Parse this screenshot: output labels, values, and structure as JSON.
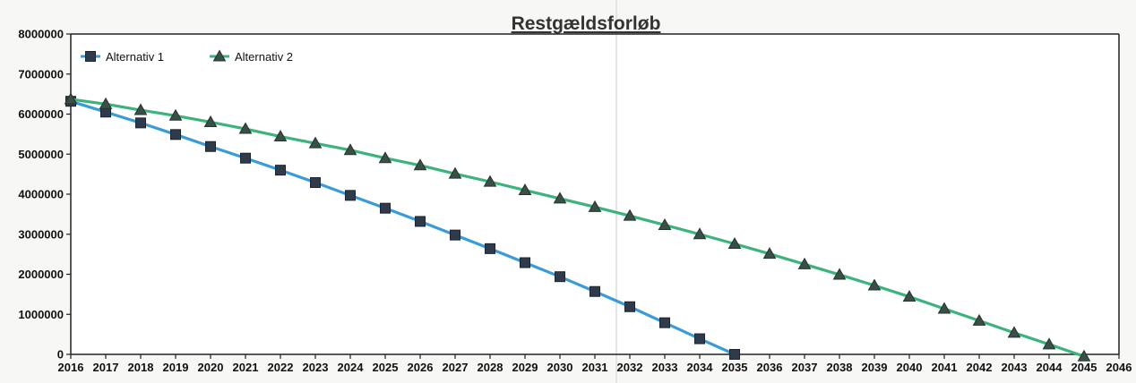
{
  "chart_data": {
    "type": "line",
    "title": "Restgældsforløb",
    "xlabel": "",
    "ylabel": "",
    "x": [
      2016,
      2017,
      2018,
      2019,
      2020,
      2021,
      2022,
      2023,
      2024,
      2025,
      2026,
      2027,
      2028,
      2029,
      2030,
      2031,
      2032,
      2033,
      2034,
      2035,
      2036,
      2037,
      2038,
      2039,
      2040,
      2041,
      2042,
      2043,
      2044,
      2045,
      2046
    ],
    "xlim": [
      2016,
      2046
    ],
    "ylim": [
      0,
      8000000
    ],
    "yticks": [
      0,
      1000000,
      2000000,
      3000000,
      4000000,
      5000000,
      6000000,
      7000000,
      8000000
    ],
    "legend_position": "top-left",
    "grid": false,
    "series": [
      {
        "name": "Alternativ 1",
        "color": "#3a9bd8",
        "marker": "square",
        "x": [
          2016,
          2017,
          2018,
          2019,
          2020,
          2021,
          2022,
          2023,
          2024,
          2025,
          2026,
          2027,
          2028,
          2029,
          2030,
          2031,
          2032,
          2033,
          2034,
          2035
        ],
        "values": [
          6320000,
          6050000,
          5780000,
          5490000,
          5190000,
          4900000,
          4600000,
          4290000,
          3970000,
          3650000,
          3320000,
          2980000,
          2640000,
          2290000,
          1940000,
          1570000,
          1190000,
          790000,
          390000,
          0
        ]
      },
      {
        "name": "Alternativ 2",
        "color": "#3db37c",
        "marker": "triangle",
        "x": [
          2016,
          2017,
          2018,
          2019,
          2020,
          2021,
          2022,
          2023,
          2024,
          2025,
          2026,
          2027,
          2028,
          2029,
          2030,
          2031,
          2032,
          2033,
          2034,
          2035,
          2036,
          2037,
          2038,
          2039,
          2040,
          2041,
          2042,
          2043,
          2044,
          2045
        ],
        "values": [
          6370000,
          6250000,
          6100000,
          5960000,
          5800000,
          5630000,
          5440000,
          5270000,
          5100000,
          4900000,
          4720000,
          4510000,
          4310000,
          4100000,
          3890000,
          3680000,
          3460000,
          3230000,
          3000000,
          2760000,
          2510000,
          2250000,
          1990000,
          1720000,
          1440000,
          1140000,
          840000,
          540000,
          250000,
          -50000
        ]
      }
    ]
  }
}
